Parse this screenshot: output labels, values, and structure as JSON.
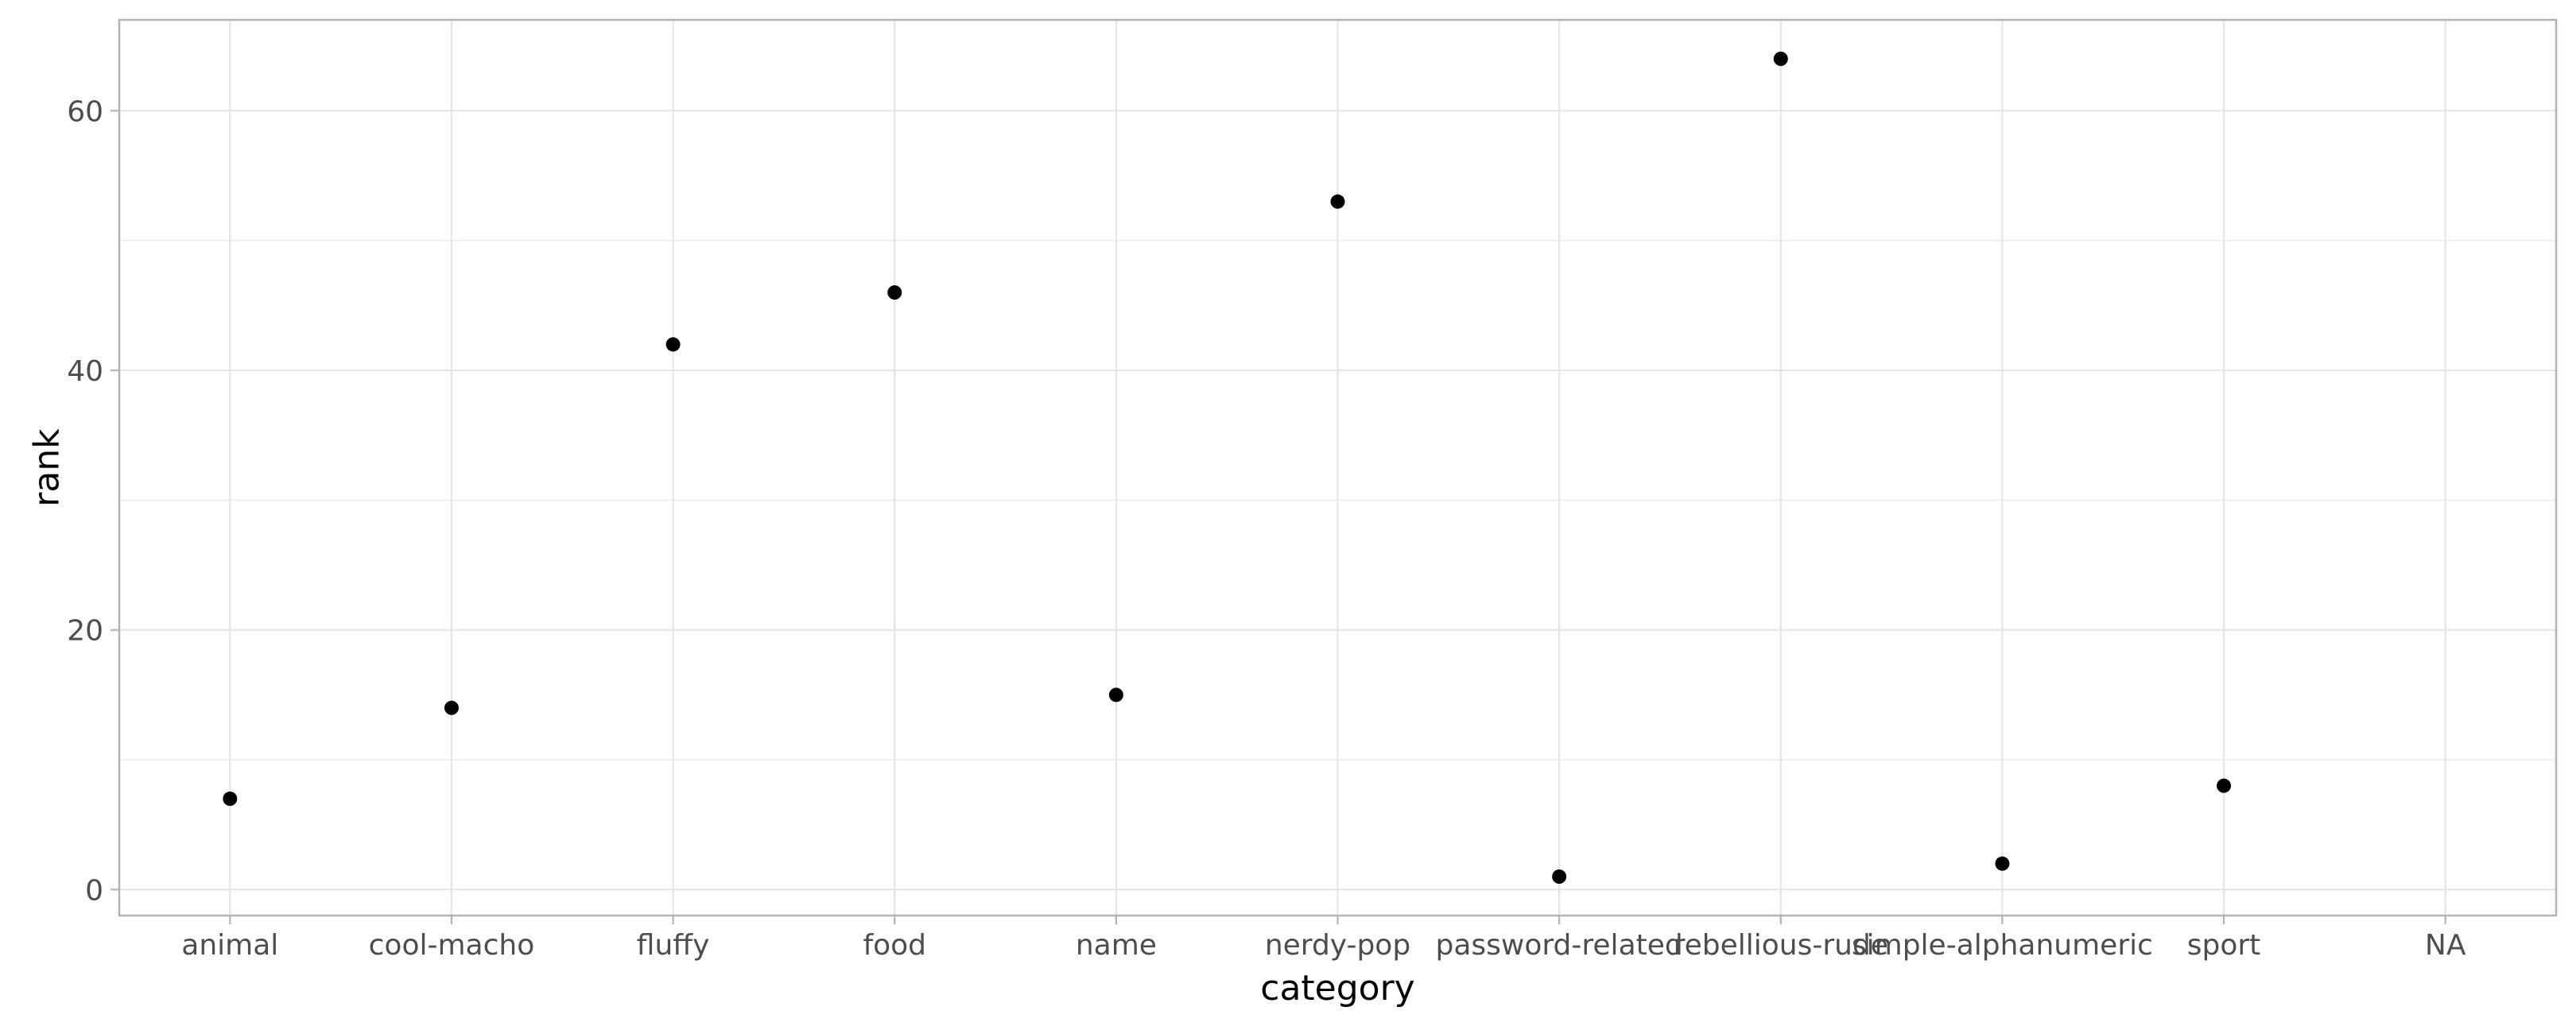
{
  "chart_data": {
    "type": "scatter",
    "title": "",
    "xlabel": "category",
    "ylabel": "rank",
    "categories": [
      "animal",
      "cool-macho",
      "fluffy",
      "food",
      "name",
      "nerdy-pop",
      "password-related",
      "rebellious-rude",
      "simple-alphanumeric",
      "sport",
      "NA"
    ],
    "points": [
      {
        "category": "animal",
        "rank": 7
      },
      {
        "category": "cool-macho",
        "rank": 14
      },
      {
        "category": "fluffy",
        "rank": 42
      },
      {
        "category": "food",
        "rank": 46
      },
      {
        "category": "name",
        "rank": 15
      },
      {
        "category": "nerdy-pop",
        "rank": 53
      },
      {
        "category": "password-related",
        "rank": 1
      },
      {
        "category": "rebellious-rude",
        "rank": 64
      },
      {
        "category": "simple-alphanumeric",
        "rank": 2
      },
      {
        "category": "sport",
        "rank": 8
      }
    ],
    "y_ticks": [
      0,
      20,
      40,
      60
    ],
    "ylim": [
      -2,
      67
    ],
    "grid": true,
    "legend": "none",
    "colors": {
      "point": "#000000",
      "grid": "#e5e5e5",
      "panel_border": "#b3b3b3",
      "tick_text": "#4d4d4d"
    }
  }
}
